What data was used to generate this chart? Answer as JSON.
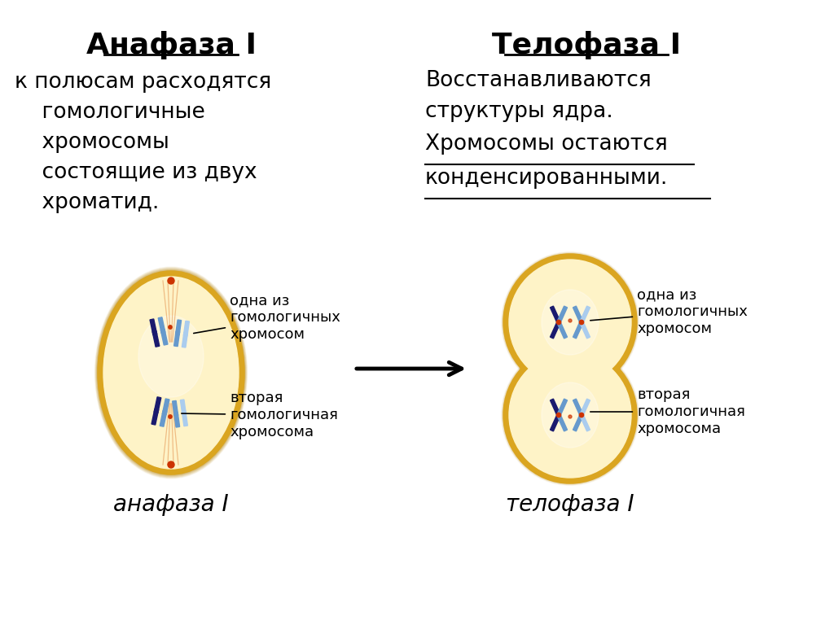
{
  "bg_color": "#ffffff",
  "left_title": "Анафаза I",
  "right_title": "Телофаза I",
  "left_body_lines": [
    "к полюсам расходятся",
    "    гомологичные",
    "    хромосомы",
    "    состоящие из двух",
    "    хроматид."
  ],
  "right_body_line1": "Восстанавливаются",
  "right_body_line2": "структуры ядра.",
  "right_body_line3": "Хромосомы остаются",
  "right_body_line4": "конденсированными.",
  "left_caption": "анафаза I",
  "right_caption": "телофаза I",
  "label_top_left_text": "одна из\nгомологичных\nхромосом",
  "label_bot_left_text": "вторая\nгомологичная\nхромосома",
  "label_top_right_text": "одна из\nгомологичных\nхромосом",
  "label_bot_right_text": "вторая\nгомологичная\nхромосома",
  "cell_outer_color": "#DAA520",
  "cell_inner_color": "#FEF3C7",
  "chromo_dark": "#1a1a6e",
  "chromo_light": "#6699cc",
  "chromo_pale": "#aaccee",
  "kinetochore_color": "#cc3300",
  "fiber_color": "#E8A060",
  "title_fontsize": 26,
  "body_fontsize": 19,
  "caption_fontsize": 20,
  "label_fontsize": 13
}
